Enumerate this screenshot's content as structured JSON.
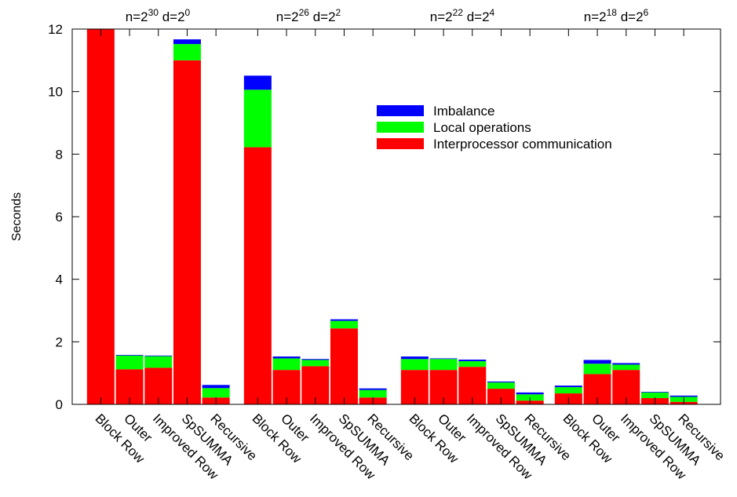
{
  "chart_data": {
    "type": "bar",
    "stacked": true,
    "ylabel": "Seconds",
    "ylim": [
      0,
      12
    ],
    "yticks": [
      0,
      2,
      4,
      6,
      8,
      10,
      12
    ],
    "grid": false,
    "legend_position": "center-right",
    "groups": [
      {
        "base": "n=2",
        "n_exp": "30",
        "mid": " d=2",
        "d_exp": "0"
      },
      {
        "base": "n=2",
        "n_exp": "26",
        "mid": " d=2",
        "d_exp": "2"
      },
      {
        "base": "n=2",
        "n_exp": "22",
        "mid": " d=2",
        "d_exp": "4"
      },
      {
        "base": "n=2",
        "n_exp": "18",
        "mid": " d=2",
        "d_exp": "6"
      }
    ],
    "categories": [
      "Block Row",
      "Outer",
      "Improved Row",
      "SpSUMMA",
      "Recursive"
    ],
    "series": [
      {
        "name": "Interprocessor communication",
        "color": "#ff0000",
        "values": [
          [
            12.0,
            1.12,
            1.17,
            11.0,
            0.22
          ],
          [
            8.22,
            1.1,
            1.22,
            2.43,
            0.22
          ],
          [
            1.1,
            1.1,
            1.2,
            0.5,
            0.12
          ],
          [
            0.35,
            0.97,
            1.1,
            0.2,
            0.08
          ]
        ]
      },
      {
        "name": "Local operations",
        "color": "#00ff00",
        "values": [
          [
            0.0,
            0.44,
            0.37,
            0.52,
            0.3
          ],
          [
            1.84,
            0.37,
            0.2,
            0.24,
            0.24
          ],
          [
            0.35,
            0.35,
            0.18,
            0.2,
            0.2
          ],
          [
            0.2,
            0.33,
            0.17,
            0.18,
            0.16
          ]
        ]
      },
      {
        "name": "Imbalance",
        "color": "#0000ff",
        "values": [
          [
            0.0,
            0.02,
            0.02,
            0.15,
            0.1
          ],
          [
            0.45,
            0.06,
            0.03,
            0.05,
            0.05
          ],
          [
            0.08,
            0.02,
            0.05,
            0.03,
            0.06
          ],
          [
            0.05,
            0.12,
            0.05,
            0.02,
            0.04
          ]
        ]
      }
    ],
    "legend_order": [
      "Imbalance",
      "Local operations",
      "Interprocessor communication"
    ]
  }
}
